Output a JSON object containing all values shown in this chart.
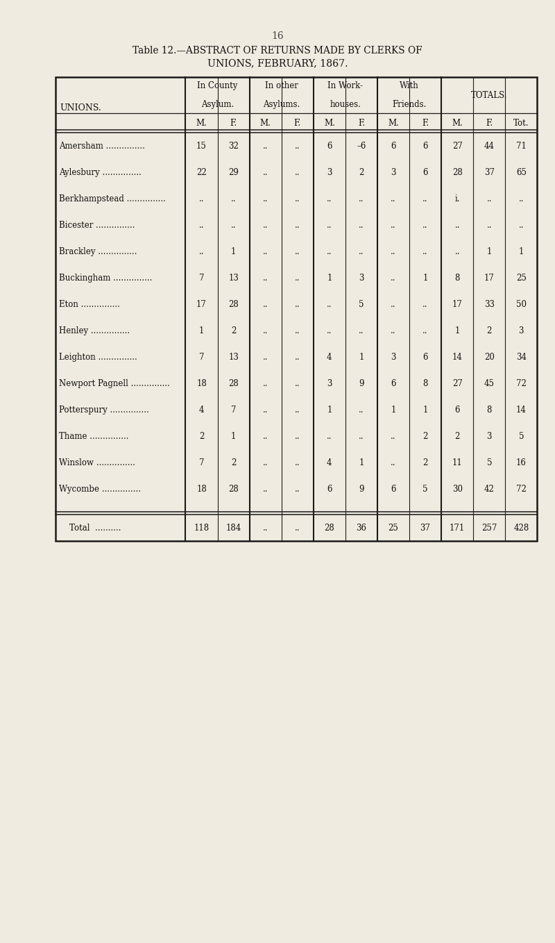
{
  "page_number": "16",
  "title_line1": "Table 12.—ABSTRACT OF RETURNS MADE BY CLERKS OF",
  "title_line2": "UNIONS, FEBRUARY, 1867.",
  "bg_color": "#f0ebe0",
  "col_groups": [
    "In County\nAsylum.",
    "In other\nAsylums.",
    "In Work-\nhouses.",
    "With\nFriends.",
    "TOTALS."
  ],
  "sub_cols": [
    "M.",
    "F.",
    "M.",
    "F.",
    "M.",
    "F.",
    "M.",
    "F.",
    "M.",
    "F.",
    "Tot."
  ],
  "unions_label": "UNIONS.",
  "rows": [
    {
      "name": "Amersham",
      "vals": [
        "15",
        "32",
        "..",
        "..",
        "6",
        "–6",
        "6",
        "6",
        "27",
        "44",
        "71"
      ]
    },
    {
      "name": "Aylesbury",
      "vals": [
        "22",
        "29",
        "..",
        "..",
        "3",
        "2",
        "3",
        "6",
        "28",
        "37",
        "65"
      ]
    },
    {
      "name": "Berkhampstead",
      "vals": [
        "..",
        "..",
        "..",
        "..",
        "..",
        "..",
        "..",
        "..",
        "i.",
        "..",
        ".."
      ]
    },
    {
      "name": "Bicester",
      "vals": [
        "..",
        "..",
        "..",
        "..",
        "..",
        "..",
        "..",
        "..",
        "..",
        "..",
        ".."
      ]
    },
    {
      "name": "Brackley",
      "vals": [
        "..",
        "1",
        "..",
        "..",
        "..",
        "..",
        "..",
        "..",
        "..",
        "1",
        "1"
      ]
    },
    {
      "name": "Buckingham",
      "vals": [
        "7",
        "13",
        "..",
        "..",
        "1",
        "3",
        "..",
        "1",
        "8",
        "17",
        "25"
      ]
    },
    {
      "name": "Eton",
      "vals": [
        "17",
        "28",
        "..",
        "..",
        "..",
        "5",
        "..",
        "..",
        "17",
        "33",
        "50"
      ]
    },
    {
      "name": "Henley",
      "vals": [
        "1",
        "2",
        "..",
        "..",
        "..",
        "..",
        "..",
        "..",
        "1",
        "2",
        "3"
      ]
    },
    {
      "name": "Leighton",
      "vals": [
        "7",
        "13",
        "..",
        "..",
        "4",
        "1",
        "3",
        "6",
        "14",
        "20",
        "34"
      ]
    },
    {
      "name": "Newport Pagnell",
      "vals": [
        "18",
        "28",
        "..",
        "..",
        "3",
        "9",
        "6",
        "8",
        "27",
        "45",
        "72"
      ]
    },
    {
      "name": "Potterspury",
      "vals": [
        "4",
        "7",
        "..",
        "..",
        "1",
        "..",
        "1",
        "1",
        "6",
        "8",
        "14"
      ]
    },
    {
      "name": "Thame",
      "vals": [
        "2",
        "1",
        "..",
        "..",
        "..",
        "..",
        "..",
        "2",
        "2",
        "3",
        "5"
      ]
    },
    {
      "name": "Winslow",
      "vals": [
        "7",
        "2",
        "..",
        "..",
        "4",
        "1",
        "..",
        "2",
        "11",
        "5",
        "16"
      ]
    },
    {
      "name": "Wycombe",
      "vals": [
        "18",
        "28",
        "..",
        "..",
        "6",
        "9",
        "6",
        "5",
        "30",
        "42",
        "72"
      ]
    }
  ],
  "total_row": {
    "name": "Total",
    "vals": [
      "118",
      "184",
      "..",
      "..",
      "28",
      "36",
      "25",
      "37",
      "171",
      "257",
      "428"
    ]
  }
}
